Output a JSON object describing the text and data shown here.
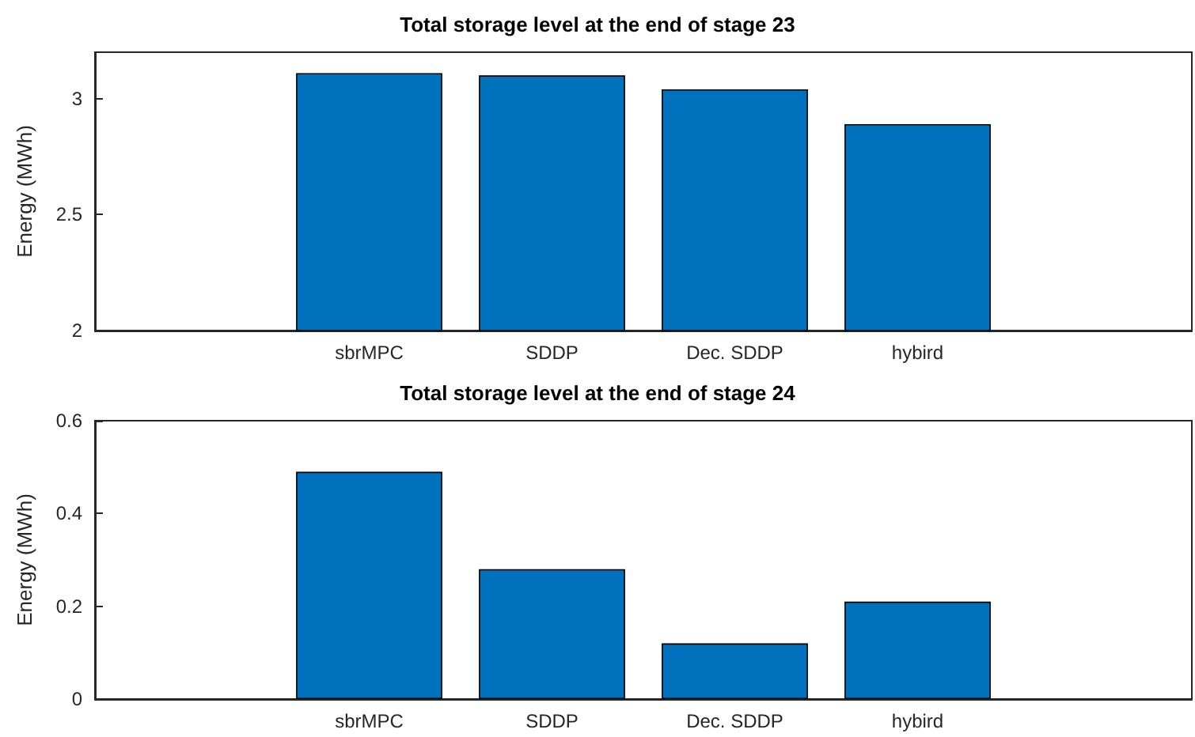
{
  "chart_data": [
    {
      "type": "bar",
      "title": "Total storage level at the end of stage 23",
      "ylabel": "Energy (MWh)",
      "categories": [
        null,
        "sbrMPC",
        "SDDP",
        "Dec. SDDP",
        "hybird",
        null
      ],
      "values": [
        null,
        3.11,
        3.1,
        3.04,
        2.89,
        null
      ],
      "color": "#0072bd",
      "ylim": [
        2,
        3.2
      ],
      "yticks": [
        2,
        2.5,
        3
      ],
      "grid": false
    },
    {
      "type": "bar",
      "title": "Total storage level at the end of stage 24",
      "ylabel": "Energy (MWh)",
      "categories": [
        null,
        "sbrMPC",
        "SDDP",
        "Dec. SDDP",
        "hybird",
        null
      ],
      "values": [
        null,
        0.49,
        0.28,
        0.12,
        0.21,
        null
      ],
      "color": "#0072bd",
      "ylim": [
        0,
        0.6
      ],
      "yticks": [
        0,
        0.2,
        0.4,
        0.6
      ],
      "grid": false
    }
  ]
}
